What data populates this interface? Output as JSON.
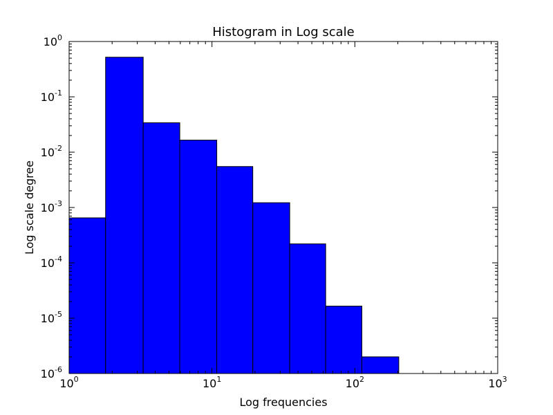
{
  "chart_data": {
    "type": "bar",
    "title": "Histogram in Log scale",
    "xlabel": "Log frequencies",
    "ylabel": "Log scale degree",
    "xscale": "log",
    "yscale": "log",
    "xlim": [
      1,
      1000
    ],
    "ylim": [
      1e-06,
      1
    ],
    "bar_color": "#0000ff",
    "edge_color": "#000000",
    "grid": false,
    "bins": [
      {
        "x0": 1.0,
        "x1": 1.8,
        "value": 0.00065
      },
      {
        "x0": 1.8,
        "x1": 3.3,
        "value": 0.52
      },
      {
        "x0": 3.3,
        "x1": 5.95,
        "value": 0.034
      },
      {
        "x0": 5.95,
        "x1": 10.8,
        "value": 0.0165
      },
      {
        "x0": 10.8,
        "x1": 19.3,
        "value": 0.0055
      },
      {
        "x0": 19.3,
        "x1": 35.0,
        "value": 0.00122
      },
      {
        "x0": 35.0,
        "x1": 62.5,
        "value": 0.00022
      },
      {
        "x0": 62.5,
        "x1": 112.0,
        "value": 1.65e-05
      },
      {
        "x0": 112.0,
        "x1": 203.0,
        "value": 2e-06
      }
    ],
    "xticks": [
      {
        "base": "10",
        "exp": "0",
        "value": 1
      },
      {
        "base": "10",
        "exp": "1",
        "value": 10
      },
      {
        "base": "10",
        "exp": "2",
        "value": 100
      },
      {
        "base": "10",
        "exp": "3",
        "value": 1000
      }
    ],
    "yticks": [
      {
        "base": "10",
        "exp": "-6",
        "value": 1e-06
      },
      {
        "base": "10",
        "exp": "-5",
        "value": 1e-05
      },
      {
        "base": "10",
        "exp": "-4",
        "value": 0.0001
      },
      {
        "base": "10",
        "exp": "-3",
        "value": 0.001
      },
      {
        "base": "10",
        "exp": "-2",
        "value": 0.01
      },
      {
        "base": "10",
        "exp": "-1",
        "value": 0.1
      },
      {
        "base": "10",
        "exp": "0",
        "value": 1
      }
    ]
  }
}
